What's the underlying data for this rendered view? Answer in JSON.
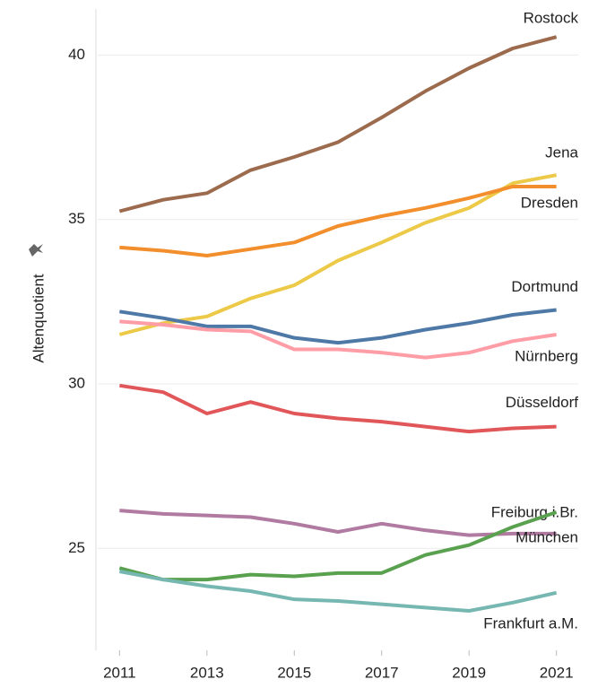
{
  "chart_data": {
    "type": "line",
    "y_label": "Altenquotient",
    "x": [
      2011,
      2012,
      2013,
      2014,
      2015,
      2016,
      2017,
      2018,
      2019,
      2020,
      2021
    ],
    "xlim": [
      2010.5,
      2021.5
    ],
    "xticks": [
      2011,
      2013,
      2015,
      2017,
      2019,
      2021
    ],
    "ylim": [
      21.9,
      41.4
    ],
    "yticks": [
      25,
      30,
      35,
      40
    ],
    "grid": true,
    "series": [
      {
        "name": "Rostock",
        "color": "#9c6b4e",
        "values": [
          35.25,
          35.6,
          35.8,
          36.5,
          36.9,
          37.35,
          38.1,
          38.9,
          39.6,
          40.2,
          40.55
        ]
      },
      {
        "name": "Jena",
        "color": "#edc948",
        "values": [
          31.5,
          31.85,
          32.05,
          32.6,
          33.0,
          33.75,
          34.3,
          34.9,
          35.35,
          36.1,
          36.35
        ]
      },
      {
        "name": "Dresden",
        "color": "#f28e2b",
        "values": [
          34.15,
          34.05,
          33.9,
          34.1,
          34.3,
          34.8,
          35.1,
          35.35,
          35.65,
          36.0,
          36.0
        ]
      },
      {
        "name": "Dortmund",
        "color": "#4e79a7",
        "values": [
          32.2,
          32.0,
          31.75,
          31.75,
          31.4,
          31.25,
          31.4,
          31.65,
          31.85,
          32.1,
          32.25
        ]
      },
      {
        "name": "Nürnberg",
        "color": "#ff9da7",
        "values": [
          31.9,
          31.8,
          31.65,
          31.6,
          31.05,
          31.05,
          30.95,
          30.8,
          30.95,
          31.3,
          31.5
        ]
      },
      {
        "name": "Düsseldorf",
        "color": "#e15759",
        "values": [
          29.95,
          29.75,
          29.1,
          29.45,
          29.1,
          28.95,
          28.85,
          28.7,
          28.55,
          28.65,
          28.7
        ]
      },
      {
        "name": "Freiburg i.Br.",
        "color": "#b07aa1",
        "values": [
          26.15,
          26.05,
          26.0,
          25.95,
          25.75,
          25.5,
          25.75,
          25.55,
          25.4,
          25.45,
          25.45
        ]
      },
      {
        "name": "München",
        "color": "#59a14f",
        "values": [
          24.4,
          24.05,
          24.05,
          24.2,
          24.15,
          24.25,
          24.25,
          24.8,
          25.1,
          25.65,
          26.1
        ]
      },
      {
        "name": "Frankfurt a.M.",
        "color": "#76b7b2",
        "values": [
          24.3,
          24.05,
          23.85,
          23.7,
          23.45,
          23.4,
          23.3,
          23.2,
          23.1,
          23.35,
          23.65
        ]
      }
    ]
  }
}
